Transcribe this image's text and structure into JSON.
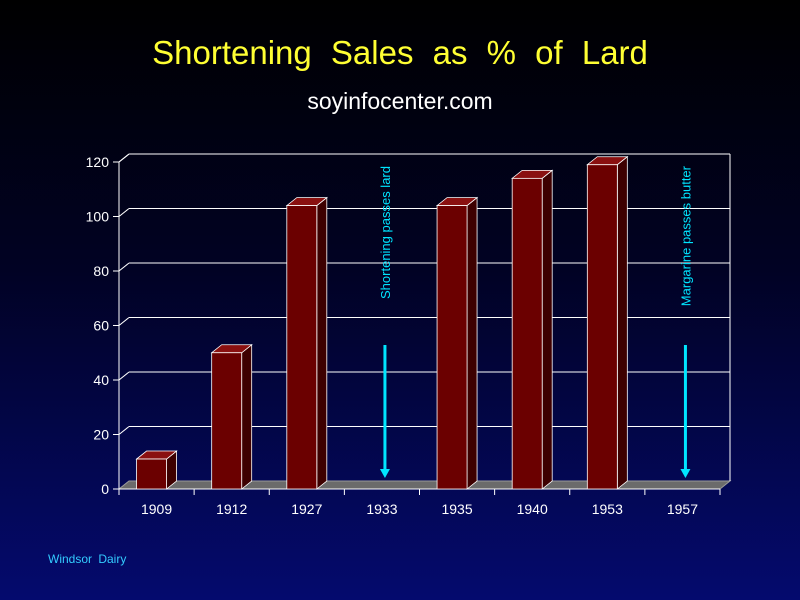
{
  "header": {
    "title": "Shortening  Sales  as  %  of  Lard",
    "subtitle": "soyinfocenter.com"
  },
  "footer": {
    "credit": "Windsor  Dairy"
  },
  "colors": {
    "bar_front": "#6b0000",
    "bar_side": "#3d0000",
    "bar_top": "#8a1010",
    "annotation": "#00e5ff",
    "axis_text": "#ffffff"
  },
  "chart_data": {
    "type": "bar",
    "categories": [
      "1909",
      "1912",
      "1927",
      "1933",
      "1935",
      "1940",
      "1953",
      "1957"
    ],
    "values": [
      11,
      50,
      104,
      null,
      104,
      114,
      119,
      null
    ],
    "ylim": [
      0,
      120
    ],
    "yticks": [
      0,
      20,
      40,
      60,
      80,
      100,
      120
    ],
    "grid": true,
    "three_d": true,
    "annotations": [
      {
        "category": "1933",
        "text": "Shortening  passes  lard",
        "arrow": "down"
      },
      {
        "category": "1957",
        "text": "Margarine  passes  butter",
        "arrow": "down"
      }
    ]
  }
}
